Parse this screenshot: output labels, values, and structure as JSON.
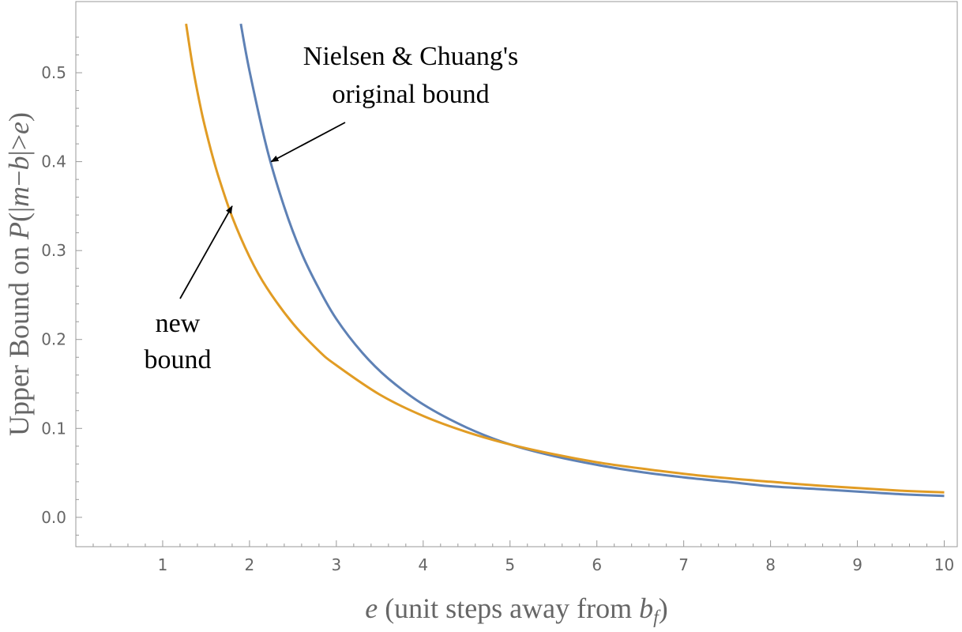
{
  "chart_data": {
    "type": "line",
    "title": "",
    "xlabel": {
      "var": "e",
      "paren_open": "(unit steps away from",
      "sub_base": "b",
      "sub_index": "f",
      "paren_close": ")"
    },
    "ylabel": {
      "prefix": "Upper Bound on",
      "p": "P",
      "open": "(|",
      "m": "m",
      "minus": "−",
      "b": "b",
      "rel": "|>",
      "e": "e",
      "close": ")"
    },
    "xlim": [
      0,
      10.15
    ],
    "ylim": [
      -0.033,
      0.58
    ],
    "x_ticks": [
      "1",
      "2",
      "3",
      "4",
      "5",
      "6",
      "7",
      "8",
      "9",
      "10"
    ],
    "y_ticks": [
      "0.0",
      "0.1",
      "0.2",
      "0.3",
      "0.4",
      "0.5"
    ],
    "grid": false,
    "series": [
      {
        "color": "#5e81b5",
        "x": [
          1.9,
          2.0,
          2.2,
          2.4,
          2.6,
          2.8,
          3.0,
          3.3,
          3.6,
          4.0,
          4.5,
          5.0,
          5.5,
          6.0,
          6.5,
          7.0,
          7.5,
          8.0,
          8.5,
          9.0,
          9.5,
          10.0
        ],
        "y": [
          0.555,
          0.502,
          0.415,
          0.349,
          0.297,
          0.257,
          0.223,
          0.185,
          0.156,
          0.127,
          0.101,
          0.082,
          0.069,
          0.059,
          0.051,
          0.045,
          0.04,
          0.035,
          0.032,
          0.029,
          0.026,
          0.024
        ]
      },
      {
        "color": "#e19c24",
        "x": [
          1.27,
          1.35,
          1.45,
          1.55,
          1.65,
          1.8,
          2.0,
          2.2,
          2.5,
          2.8,
          3.0,
          3.5,
          4.0,
          4.5,
          5.0,
          5.5,
          6.0,
          6.5,
          7.0,
          7.5,
          8.0,
          8.5,
          9.0,
          9.5,
          10.0
        ],
        "y": [
          0.555,
          0.505,
          0.455,
          0.415,
          0.381,
          0.338,
          0.293,
          0.258,
          0.218,
          0.187,
          0.171,
          0.138,
          0.114,
          0.096,
          0.082,
          0.071,
          0.062,
          0.055,
          0.049,
          0.044,
          0.04,
          0.036,
          0.033,
          0.03,
          0.028
        ]
      }
    ],
    "annotations": [
      {
        "lines": [
          "Nielsen & Chuang's",
          "original bound"
        ],
        "target": [
          2.25,
          0.4
        ]
      },
      {
        "lines": [
          "new",
          "bound"
        ],
        "target": [
          1.8,
          0.35
        ]
      }
    ]
  }
}
